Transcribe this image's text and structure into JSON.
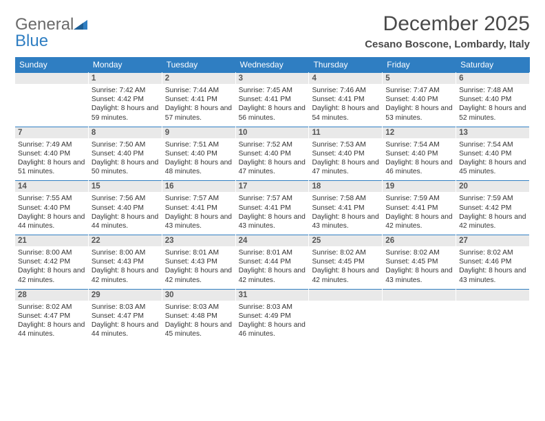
{
  "brand": {
    "part1": "General",
    "part2": "Blue"
  },
  "header": {
    "title": "December 2025",
    "location": "Cesano Boscone, Lombardy, Italy"
  },
  "colors": {
    "accent": "#2f7ec2",
    "daybar_bg": "#e9e9e9",
    "text": "#333333",
    "muted": "#6a6a6a"
  },
  "weekdays": [
    "Sunday",
    "Monday",
    "Tuesday",
    "Wednesday",
    "Thursday",
    "Friday",
    "Saturday"
  ],
  "weeks": [
    [
      {
        "num": "",
        "sr": "",
        "ss": "",
        "dl": ""
      },
      {
        "num": "1",
        "sr": "Sunrise: 7:42 AM",
        "ss": "Sunset: 4:42 PM",
        "dl": "Daylight: 8 hours and 59 minutes."
      },
      {
        "num": "2",
        "sr": "Sunrise: 7:44 AM",
        "ss": "Sunset: 4:41 PM",
        "dl": "Daylight: 8 hours and 57 minutes."
      },
      {
        "num": "3",
        "sr": "Sunrise: 7:45 AM",
        "ss": "Sunset: 4:41 PM",
        "dl": "Daylight: 8 hours and 56 minutes."
      },
      {
        "num": "4",
        "sr": "Sunrise: 7:46 AM",
        "ss": "Sunset: 4:41 PM",
        "dl": "Daylight: 8 hours and 54 minutes."
      },
      {
        "num": "5",
        "sr": "Sunrise: 7:47 AM",
        "ss": "Sunset: 4:40 PM",
        "dl": "Daylight: 8 hours and 53 minutes."
      },
      {
        "num": "6",
        "sr": "Sunrise: 7:48 AM",
        "ss": "Sunset: 4:40 PM",
        "dl": "Daylight: 8 hours and 52 minutes."
      }
    ],
    [
      {
        "num": "7",
        "sr": "Sunrise: 7:49 AM",
        "ss": "Sunset: 4:40 PM",
        "dl": "Daylight: 8 hours and 51 minutes."
      },
      {
        "num": "8",
        "sr": "Sunrise: 7:50 AM",
        "ss": "Sunset: 4:40 PM",
        "dl": "Daylight: 8 hours and 50 minutes."
      },
      {
        "num": "9",
        "sr": "Sunrise: 7:51 AM",
        "ss": "Sunset: 4:40 PM",
        "dl": "Daylight: 8 hours and 48 minutes."
      },
      {
        "num": "10",
        "sr": "Sunrise: 7:52 AM",
        "ss": "Sunset: 4:40 PM",
        "dl": "Daylight: 8 hours and 47 minutes."
      },
      {
        "num": "11",
        "sr": "Sunrise: 7:53 AM",
        "ss": "Sunset: 4:40 PM",
        "dl": "Daylight: 8 hours and 47 minutes."
      },
      {
        "num": "12",
        "sr": "Sunrise: 7:54 AM",
        "ss": "Sunset: 4:40 PM",
        "dl": "Daylight: 8 hours and 46 minutes."
      },
      {
        "num": "13",
        "sr": "Sunrise: 7:54 AM",
        "ss": "Sunset: 4:40 PM",
        "dl": "Daylight: 8 hours and 45 minutes."
      }
    ],
    [
      {
        "num": "14",
        "sr": "Sunrise: 7:55 AM",
        "ss": "Sunset: 4:40 PM",
        "dl": "Daylight: 8 hours and 44 minutes."
      },
      {
        "num": "15",
        "sr": "Sunrise: 7:56 AM",
        "ss": "Sunset: 4:40 PM",
        "dl": "Daylight: 8 hours and 44 minutes."
      },
      {
        "num": "16",
        "sr": "Sunrise: 7:57 AM",
        "ss": "Sunset: 4:41 PM",
        "dl": "Daylight: 8 hours and 43 minutes."
      },
      {
        "num": "17",
        "sr": "Sunrise: 7:57 AM",
        "ss": "Sunset: 4:41 PM",
        "dl": "Daylight: 8 hours and 43 minutes."
      },
      {
        "num": "18",
        "sr": "Sunrise: 7:58 AM",
        "ss": "Sunset: 4:41 PM",
        "dl": "Daylight: 8 hours and 43 minutes."
      },
      {
        "num": "19",
        "sr": "Sunrise: 7:59 AM",
        "ss": "Sunset: 4:41 PM",
        "dl": "Daylight: 8 hours and 42 minutes."
      },
      {
        "num": "20",
        "sr": "Sunrise: 7:59 AM",
        "ss": "Sunset: 4:42 PM",
        "dl": "Daylight: 8 hours and 42 minutes."
      }
    ],
    [
      {
        "num": "21",
        "sr": "Sunrise: 8:00 AM",
        "ss": "Sunset: 4:42 PM",
        "dl": "Daylight: 8 hours and 42 minutes."
      },
      {
        "num": "22",
        "sr": "Sunrise: 8:00 AM",
        "ss": "Sunset: 4:43 PM",
        "dl": "Daylight: 8 hours and 42 minutes."
      },
      {
        "num": "23",
        "sr": "Sunrise: 8:01 AM",
        "ss": "Sunset: 4:43 PM",
        "dl": "Daylight: 8 hours and 42 minutes."
      },
      {
        "num": "24",
        "sr": "Sunrise: 8:01 AM",
        "ss": "Sunset: 4:44 PM",
        "dl": "Daylight: 8 hours and 42 minutes."
      },
      {
        "num": "25",
        "sr": "Sunrise: 8:02 AM",
        "ss": "Sunset: 4:45 PM",
        "dl": "Daylight: 8 hours and 42 minutes."
      },
      {
        "num": "26",
        "sr": "Sunrise: 8:02 AM",
        "ss": "Sunset: 4:45 PM",
        "dl": "Daylight: 8 hours and 43 minutes."
      },
      {
        "num": "27",
        "sr": "Sunrise: 8:02 AM",
        "ss": "Sunset: 4:46 PM",
        "dl": "Daylight: 8 hours and 43 minutes."
      }
    ],
    [
      {
        "num": "28",
        "sr": "Sunrise: 8:02 AM",
        "ss": "Sunset: 4:47 PM",
        "dl": "Daylight: 8 hours and 44 minutes."
      },
      {
        "num": "29",
        "sr": "Sunrise: 8:03 AM",
        "ss": "Sunset: 4:47 PM",
        "dl": "Daylight: 8 hours and 44 minutes."
      },
      {
        "num": "30",
        "sr": "Sunrise: 8:03 AM",
        "ss": "Sunset: 4:48 PM",
        "dl": "Daylight: 8 hours and 45 minutes."
      },
      {
        "num": "31",
        "sr": "Sunrise: 8:03 AM",
        "ss": "Sunset: 4:49 PM",
        "dl": "Daylight: 8 hours and 46 minutes."
      },
      {
        "num": "",
        "sr": "",
        "ss": "",
        "dl": ""
      },
      {
        "num": "",
        "sr": "",
        "ss": "",
        "dl": ""
      },
      {
        "num": "",
        "sr": "",
        "ss": "",
        "dl": ""
      }
    ]
  ]
}
